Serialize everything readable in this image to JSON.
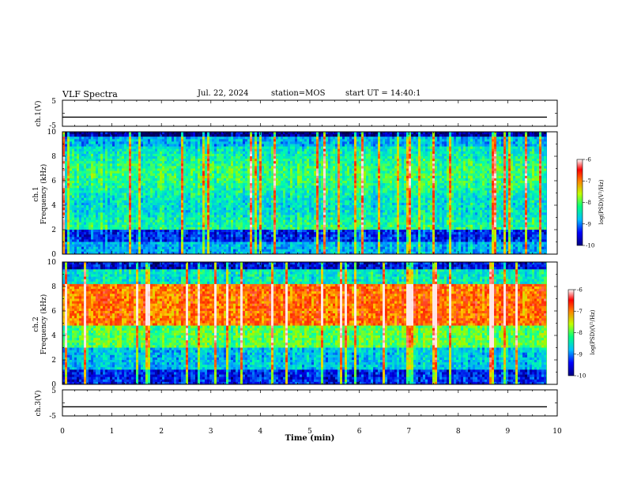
{
  "header": {
    "title": "VLF Spectra",
    "date": "Jul. 22, 2024",
    "station": "station=MOS",
    "start": "start UT =  14:40:1"
  },
  "chart_data": [
    {
      "type": "line",
      "ylabel": "ch.1(V)",
      "ylim": [
        -5,
        5
      ],
      "yticks": [
        "5",
        "-5"
      ],
      "series": [
        {
          "values": [
            -1.5,
            -1.5
          ]
        }
      ]
    },
    {
      "type": "heatmap",
      "ylabel_line1": "ch.1",
      "ylabel_line2": "Frequency (kHz)",
      "ylim": [
        0,
        10
      ],
      "yticks": [
        "0",
        "2",
        "4",
        "6",
        "8",
        "10"
      ],
      "colorbar": {
        "label": "log(PSD)(V²/Hz)",
        "range": [
          -10,
          -6
        ],
        "ticks": [
          "-6",
          "-7",
          "-8",
          "-9",
          "-10"
        ]
      }
    },
    {
      "type": "heatmap",
      "ylabel_line1": "ch.2",
      "ylabel_line2": "Frequency (kHz)",
      "ylim": [
        0,
        10
      ],
      "yticks": [
        "0",
        "2",
        "4",
        "6",
        "8",
        "10"
      ],
      "colorbar": {
        "label": "log(PSD)(V²/Hz)",
        "range": [
          -10,
          -6
        ],
        "ticks": [
          "-6",
          "-7",
          "-8",
          "-9",
          "-10"
        ]
      }
    },
    {
      "type": "line",
      "ylabel": "ch.3(V)",
      "ylim": [
        -5,
        5
      ],
      "yticks": [
        "5",
        "-5"
      ],
      "xlabel": "Time (min)",
      "xlim": [
        0,
        10
      ],
      "xticks": [
        "0",
        "1",
        "2",
        "3",
        "4",
        "5",
        "6",
        "7",
        "8",
        "9",
        "10"
      ],
      "series": [
        {
          "values": [
            -1.5,
            -1.5
          ]
        }
      ]
    }
  ]
}
